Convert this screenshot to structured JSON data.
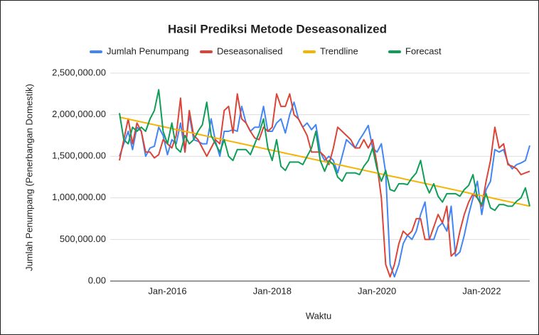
{
  "chart_data": {
    "type": "line",
    "title": "Hasil Prediksi Metode Deseasonalized",
    "x_label": "Waktu",
    "y_label": "Jumlah Penumpang (Penerbangan Domestik)",
    "legend": "top",
    "grid": true,
    "x": [
      "2015-02",
      "2015-03",
      "2015-04",
      "2015-05",
      "2015-06",
      "2015-07",
      "2015-08",
      "2015-09",
      "2015-10",
      "2015-11",
      "2015-12",
      "2016-01",
      "2016-02",
      "2016-03",
      "2016-04",
      "2016-05",
      "2016-06",
      "2016-07",
      "2016-08",
      "2016-09",
      "2016-10",
      "2016-11",
      "2016-12",
      "2017-01",
      "2017-02",
      "2017-03",
      "2017-04",
      "2017-05",
      "2017-06",
      "2017-07",
      "2017-08",
      "2017-09",
      "2017-10",
      "2017-11",
      "2017-12",
      "2018-01",
      "2018-02",
      "2018-03",
      "2018-04",
      "2018-05",
      "2018-06",
      "2018-07",
      "2018-08",
      "2018-09",
      "2018-10",
      "2018-11",
      "2018-12",
      "2019-01",
      "2019-02",
      "2019-03",
      "2019-04",
      "2019-05",
      "2019-06",
      "2019-07",
      "2019-08",
      "2019-09",
      "2019-10",
      "2019-11",
      "2019-12",
      "2020-01",
      "2020-02",
      "2020-03",
      "2020-04",
      "2020-05",
      "2020-06",
      "2020-07",
      "2020-08",
      "2020-09",
      "2020-10",
      "2020-11",
      "2020-12",
      "2021-01",
      "2021-02",
      "2021-03",
      "2021-04",
      "2021-05",
      "2021-06",
      "2021-07",
      "2021-08",
      "2021-09",
      "2021-10",
      "2021-11",
      "2021-12",
      "2022-01",
      "2022-02",
      "2022-03",
      "2022-04",
      "2022-05",
      "2022-06",
      "2022-07",
      "2022-08",
      "2022-09",
      "2022-10",
      "2022-11",
      "2022-12"
    ],
    "xlim": [
      "2015-02",
      "2022-12"
    ],
    "xticks": [
      {
        "value": "2016-01",
        "label": "Jan-2016"
      },
      {
        "value": "2018-01",
        "label": "Jan-2018"
      },
      {
        "value": "2020-01",
        "label": "Jan-2020"
      },
      {
        "value": "2022-01",
        "label": "Jan-2022"
      }
    ],
    "ylim": [
      0,
      2500000
    ],
    "yticks": [
      {
        "value": 0,
        "label": "0.00"
      },
      {
        "value": 500000,
        "label": "500,000.00"
      },
      {
        "value": 1000000,
        "label": "1,000,000.00"
      },
      {
        "value": 1500000,
        "label": "1,500,000.00"
      },
      {
        "value": 2000000,
        "label": "2,000,000.00"
      },
      {
        "value": 2500000,
        "label": "2,500,000.00"
      }
    ],
    "series": [
      {
        "name": "Jumlah Penumpang",
        "color": "#4285f4",
        "values": [
          1500000,
          1650000,
          1800000,
          1580000,
          1850000,
          1800000,
          1500000,
          1600000,
          1620000,
          1850000,
          1750000,
          1520000,
          1700000,
          1650000,
          1900000,
          1550000,
          2000000,
          1700000,
          1680000,
          1650000,
          1650000,
          1950000,
          1680000,
          1500000,
          1800000,
          1800000,
          1820000,
          1800000,
          2100000,
          1900000,
          1800000,
          1850000,
          1850000,
          2100000,
          1800000,
          1800000,
          1900000,
          1950000,
          1780000,
          2000000,
          2150000,
          1950000,
          1850000,
          1900000,
          1820000,
          1880000,
          1550000,
          1450000,
          1500000,
          1450000,
          1300000,
          1500000,
          1700000,
          1650000,
          1600000,
          1700000,
          1780000,
          1870000,
          1600000,
          1550000,
          1650000,
          1300000,
          200000,
          50000,
          200000,
          450000,
          550000,
          500000,
          600000,
          800000,
          950000,
          500000,
          500000,
          650000,
          700000,
          600000,
          900000,
          300000,
          350000,
          550000,
          800000,
          1000000,
          1200000,
          800000,
          1100000,
          1200000,
          1580000,
          1550000,
          1580000,
          1420000,
          1350000,
          1400000,
          1420000,
          1450000,
          1630000
        ]
      },
      {
        "name": "Deseasonalised",
        "color": "#db4437",
        "values": [
          1450000,
          1700000,
          1950000,
          1650000,
          1900000,
          1800000,
          1550000,
          1550000,
          1480000,
          1520000,
          1700000,
          1650000,
          1600000,
          1750000,
          2200000,
          1550000,
          2050000,
          1750000,
          1700000,
          1600000,
          1500000,
          1600000,
          1700000,
          1650000,
          2050000,
          2100000,
          1780000,
          2250000,
          1950000,
          1900000,
          1800000,
          1720000,
          1700000,
          1850000,
          1800000,
          1850000,
          2250000,
          2100000,
          2100000,
          2250000,
          2000000,
          1950000,
          1850000,
          1750000,
          1550000,
          1550000,
          1550000,
          1500000,
          1400000,
          1600000,
          1850000,
          1800000,
          1750000,
          1700000,
          1600000,
          1600000,
          1700000,
          1600000,
          1700000,
          1400000,
          1000000,
          200000,
          50000,
          200000,
          450000,
          600000,
          550000,
          600000,
          750000,
          750000,
          500000,
          500000,
          650000,
          800000,
          700000,
          900000,
          300000,
          350000,
          600000,
          800000,
          950000,
          1050000,
          1000000,
          900000,
          1200000,
          1450000,
          1850000,
          1600000,
          1650000,
          1400000,
          1380000,
          1350000,
          1280000,
          1300000,
          1320000
        ]
      },
      {
        "name": "Trendline",
        "color": "#f4b400",
        "values": [
          1970000,
          1959000,
          1947000,
          1936000,
          1924000,
          1913000,
          1902000,
          1890000,
          1879000,
          1868000,
          1856000,
          1845000,
          1833000,
          1822000,
          1811000,
          1799000,
          1788000,
          1777000,
          1765000,
          1754000,
          1742000,
          1731000,
          1720000,
          1708000,
          1697000,
          1685000,
          1674000,
          1663000,
          1651000,
          1640000,
          1629000,
          1617000,
          1606000,
          1594000,
          1583000,
          1572000,
          1560000,
          1549000,
          1537000,
          1526000,
          1515000,
          1503000,
          1492000,
          1481000,
          1469000,
          1458000,
          1446000,
          1435000,
          1424000,
          1412000,
          1401000,
          1390000,
          1378000,
          1367000,
          1355000,
          1344000,
          1333000,
          1321000,
          1310000,
          1298000,
          1287000,
          1276000,
          1264000,
          1253000,
          1242000,
          1230000,
          1219000,
          1207000,
          1196000,
          1185000,
          1173000,
          1162000,
          1150000,
          1139000,
          1128000,
          1116000,
          1105000,
          1094000,
          1082000,
          1071000,
          1059000,
          1048000,
          1037000,
          1025000,
          1014000,
          1003000,
          991000,
          980000,
          968000,
          957000,
          946000,
          934000,
          923000,
          912000,
          900000
        ]
      },
      {
        "name": "Forecast",
        "color": "#0f9d58",
        "values": [
          2020000,
          1700000,
          1650000,
          1850000,
          1800000,
          1850000,
          1800000,
          1950000,
          2050000,
          2300000,
          1800000,
          1650000,
          1900000,
          1600000,
          1550000,
          1750000,
          1650000,
          1700000,
          1800000,
          1880000,
          2150000,
          1750000,
          1650000,
          1550000,
          1700000,
          1500000,
          1450000,
          1580000,
          1580000,
          1580000,
          1520000,
          1650000,
          1780000,
          1950000,
          1600000,
          1450000,
          1700000,
          1380000,
          1330000,
          1430000,
          1430000,
          1430000,
          1400000,
          1500000,
          1600000,
          1800000,
          1450000,
          1320000,
          1450000,
          1400000,
          1250000,
          1200000,
          1300000,
          1300000,
          1300000,
          1280000,
          1380000,
          1450000,
          1600000,
          1350000,
          1200000,
          1330000,
          1100000,
          1080000,
          1170000,
          1170000,
          1160000,
          1240000,
          1300000,
          1450000,
          1180000,
          1060000,
          1170000,
          1020000,
          950000,
          1050000,
          1050000,
          1050000,
          1020000,
          1100000,
          1150000,
          1280000,
          1000000,
          920000,
          1050000,
          880000,
          850000,
          920000,
          920000,
          900000,
          900000,
          960000,
          1000000,
          1120000,
          900000
        ]
      }
    ]
  }
}
